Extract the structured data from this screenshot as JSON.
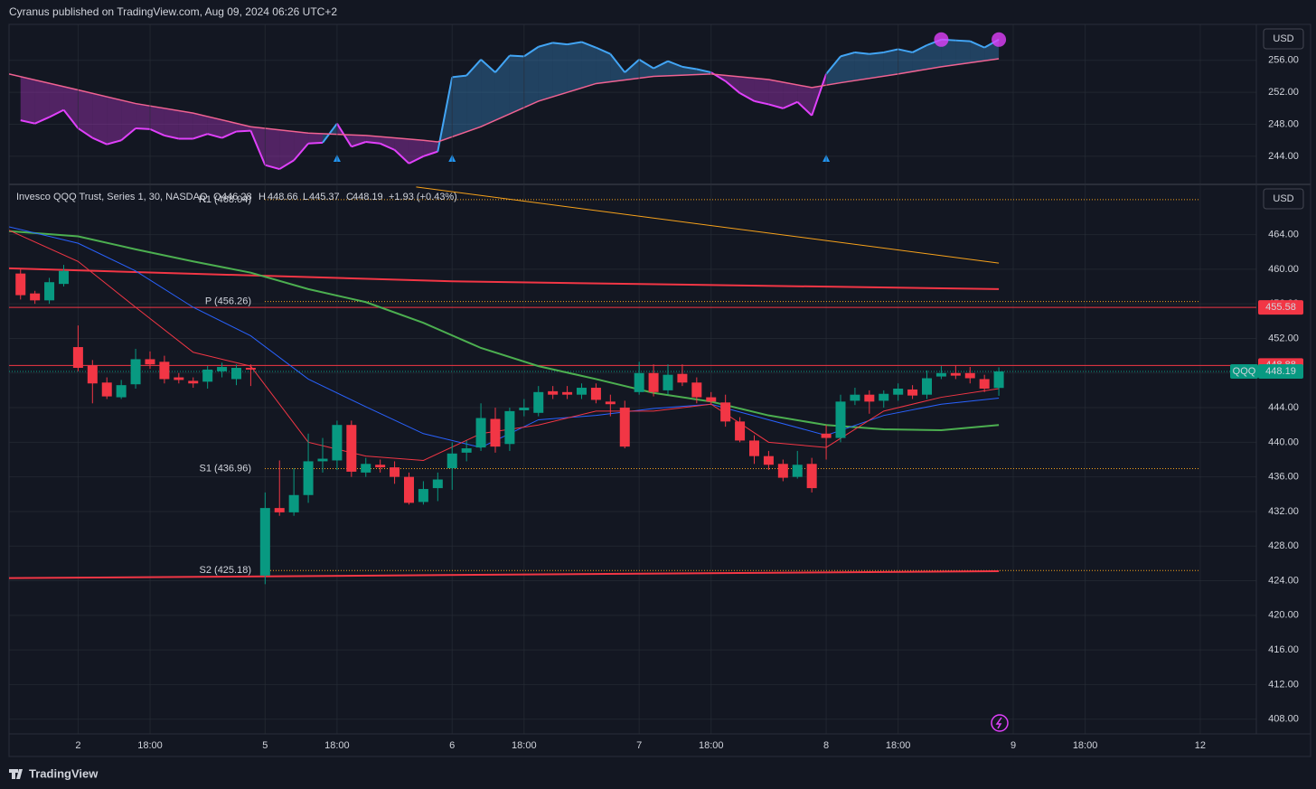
{
  "header": "Cyranus published on TradingView.com, Aug 09, 2024 06:26 UTC+2",
  "footer": "TradingView",
  "chart_data": [
    {
      "type": "line",
      "currency": "USD",
      "xlim": [
        -17.8,
        68.9
      ],
      "ylim": [
        240.6,
        260.5
      ],
      "yticks": [
        {
          "value": 244,
          "label": "244.00"
        },
        {
          "value": 248,
          "label": "248.00"
        },
        {
          "value": 252,
          "label": "252.00"
        },
        {
          "value": 256,
          "label": "256.00"
        }
      ],
      "series": [
        {
          "color": "#42a5f5",
          "color_below": "#e040fb",
          "x": [
            -17,
            -16,
            -15,
            -14,
            -13,
            -12,
            -11,
            -10,
            -9,
            -8,
            -7,
            -6,
            -5,
            -4,
            -3,
            -2,
            -1,
            0,
            1,
            2,
            3,
            4,
            5,
            6,
            7,
            8,
            9,
            10,
            11,
            12,
            13,
            14,
            15,
            16,
            17,
            18,
            19,
            20,
            21,
            22,
            23,
            24,
            25,
            26,
            27,
            28,
            29,
            30,
            31,
            32,
            33,
            34,
            35,
            36,
            37,
            38,
            39,
            40,
            41,
            42,
            43,
            44,
            45,
            46,
            47,
            48,
            49,
            50,
            51
          ],
          "values": [
            248.5,
            248.1,
            248.9,
            249.8,
            247.5,
            246.3,
            245.5,
            246,
            247.5,
            247.4,
            246.6,
            246.2,
            246.2,
            246.8,
            246.3,
            247.1,
            247.2,
            242.9,
            242.4,
            243.5,
            245.6,
            245.7,
            248.1,
            245.2,
            245.8,
            245.6,
            244.8,
            243.1,
            244,
            244.6,
            253.9,
            254.1,
            256.1,
            254.5,
            256.6,
            256.5,
            257.7,
            258.2,
            258,
            258.3,
            257.6,
            256.8,
            254.5,
            256.1,
            255,
            255.9,
            255.2,
            254.9,
            254.5,
            253.4,
            251.9,
            250.9,
            250.5,
            250,
            250.8,
            249.1,
            254.3,
            256.5,
            257,
            256.8,
            257,
            257.4,
            257,
            257.9,
            258.6,
            258.5,
            258.4,
            257.6,
            258.6
          ]
        },
        {
          "color": "#f06292",
          "x": [
            -17.8,
            -13,
            -9,
            -5,
            -1,
            3,
            7,
            11,
            12,
            15,
            19,
            23,
            27,
            31,
            35,
            38,
            40,
            44,
            47,
            51
          ],
          "values": [
            254.3,
            252.3,
            250.6,
            249.4,
            247.7,
            246.9,
            246.6,
            246,
            245.8,
            247.7,
            250.9,
            253.1,
            254,
            254.3,
            253.6,
            252.6,
            253.2,
            254.3,
            255.2,
            256.2
          ]
        }
      ],
      "signals_up": {
        "color": "#2196f3",
        "x": [
          5,
          13,
          39
        ]
      },
      "signals_circle": {
        "color": "#e040fb",
        "x": [
          47,
          51
        ]
      }
    },
    {
      "type": "candlestick",
      "currency": "USD",
      "legend": {
        "title": "Invesco QQQ Trust, Series 1, 30, NASDAQ",
        "o_label": "O",
        "open": 446.28,
        "h_label": "H",
        "high": 448.66,
        "l_label": "L",
        "low": 445.37,
        "c_label": "C",
        "close": 448.19,
        "change": "+1.93 (+0.43%)"
      },
      "xlim": [
        -17.8,
        68.9
      ],
      "ylim": [
        406.3,
        469.7
      ],
      "xticks": [
        {
          "value": -13,
          "label": "2"
        },
        {
          "value": -8,
          "label": "18:00"
        },
        {
          "value": 0,
          "label": "5"
        },
        {
          "value": 5,
          "label": "18:00"
        },
        {
          "value": 13,
          "label": "6"
        },
        {
          "value": 18,
          "label": "18:00"
        },
        {
          "value": 26,
          "label": "7"
        },
        {
          "value": 31,
          "label": "18:00"
        },
        {
          "value": 39,
          "label": "8"
        },
        {
          "value": 44,
          "label": "18:00"
        },
        {
          "value": 52,
          "label": "9"
        },
        {
          "value": 57,
          "label": "18:00"
        },
        {
          "value": 65,
          "label": "12"
        }
      ],
      "yticks": [
        {
          "value": 408,
          "label": "408.00"
        },
        {
          "value": 412,
          "label": "412.00"
        },
        {
          "value": 416,
          "label": "416.00"
        },
        {
          "value": 420,
          "label": "420.00"
        },
        {
          "value": 424,
          "label": "424.00"
        },
        {
          "value": 428,
          "label": "428.00"
        },
        {
          "value": 432,
          "label": "432.00"
        },
        {
          "value": 436,
          "label": "436.00"
        },
        {
          "value": 440,
          "label": "440.00"
        },
        {
          "value": 444,
          "label": "444.00"
        },
        {
          "value": 448,
          "label": "448.00"
        },
        {
          "value": 452,
          "label": "452.00"
        },
        {
          "value": 456,
          "label": "456.00"
        },
        {
          "value": 460,
          "label": "460.00"
        },
        {
          "value": 464,
          "label": "464.00"
        }
      ],
      "up_color": "#089981",
      "down_color": "#f23645",
      "candles": {
        "x": [
          -17,
          -16,
          -15,
          -14,
          -13,
          -12,
          -11,
          -10,
          -9,
          -8,
          -7,
          -6,
          -5,
          -4,
          -3,
          -2,
          -1,
          0,
          1,
          2,
          3,
          4,
          5,
          6,
          7,
          8,
          9,
          10,
          11,
          12,
          13,
          14,
          15,
          16,
          17,
          18,
          19,
          20,
          21,
          22,
          23,
          24,
          25,
          26,
          27,
          28,
          29,
          30,
          31,
          32,
          33,
          34,
          35,
          36,
          37,
          38,
          39,
          40,
          41,
          42,
          43,
          44,
          45,
          46,
          47,
          48,
          49,
          50,
          51
        ],
        "open": [
          459.5,
          457.2,
          456.4,
          458.3,
          451,
          448.9,
          446.9,
          445.2,
          446.7,
          449.6,
          449.3,
          447.5,
          447.1,
          447,
          448.2,
          447.3,
          448.6,
          424.6,
          432.4,
          431.9,
          433.9,
          437.8,
          437.9,
          442,
          436.5,
          437.4,
          437.1,
          436,
          433.1,
          434.7,
          437,
          438.8,
          439.4,
          442.7,
          439.8,
          443.7,
          443.4,
          445.9,
          445.8,
          445.5,
          446.3,
          444.7,
          444,
          445.8,
          448,
          446,
          447.9,
          446.9,
          445.2,
          444.6,
          442.4,
          440.2,
          438.4,
          437.5,
          436,
          437.5,
          441,
          440.5,
          444.8,
          445.5,
          444.8,
          445.5,
          446.1,
          445.5,
          447.6,
          448,
          448,
          447.3,
          446.28
        ],
        "high": [
          460,
          457.5,
          459,
          460.5,
          453.5,
          449.5,
          447.5,
          447.2,
          450.8,
          450.5,
          450,
          448,
          447.5,
          448.8,
          449.2,
          449,
          449,
          434.2,
          437.9,
          437,
          441,
          440.5,
          442.5,
          442.5,
          438.2,
          438,
          437.8,
          436.5,
          435.5,
          436.5,
          440,
          440.2,
          444.5,
          444,
          444,
          445,
          446.5,
          446.5,
          446.5,
          446.8,
          446.8,
          445.5,
          444.8,
          449.3,
          449,
          449,
          449,
          447.5,
          445.8,
          445.5,
          442.9,
          440.8,
          439,
          438,
          439,
          438.2,
          442,
          445.5,
          446.3,
          446,
          446,
          446.8,
          446.6,
          448.3,
          448.8,
          448.9,
          448.7,
          447.8,
          448.66
        ],
        "low": [
          456.5,
          456,
          456,
          458,
          448.2,
          444.5,
          445,
          445,
          446.2,
          448.5,
          446.8,
          446.8,
          446.3,
          446.2,
          447.5,
          446.6,
          446.5,
          423.6,
          431.5,
          431.5,
          433,
          436.5,
          436.8,
          436,
          436,
          436.5,
          435.2,
          432.8,
          432.8,
          433.2,
          434.5,
          437.8,
          439,
          438.8,
          439,
          443,
          443,
          445,
          445,
          445,
          444.5,
          443,
          439.3,
          445.5,
          445.3,
          445.5,
          446.5,
          444.5,
          444.3,
          441.8,
          440,
          437.5,
          436.8,
          435.5,
          435.8,
          434.2,
          438,
          440,
          444.3,
          443.3,
          444,
          444.8,
          445,
          445,
          447.3,
          447.3,
          446.8,
          445.8,
          445.37
        ],
        "close": [
          457,
          456.4,
          458.5,
          459.8,
          448.6,
          446.8,
          445.3,
          446.6,
          449.6,
          449,
          447.3,
          447.2,
          446.8,
          448.4,
          448.7,
          448.6,
          448.4,
          432.4,
          431.9,
          433.9,
          437.8,
          438.1,
          442,
          436.6,
          437.5,
          437.1,
          436,
          433,
          434.6,
          435.7,
          438.7,
          439.3,
          442.8,
          439.5,
          443.6,
          444,
          445.8,
          445.5,
          445.5,
          446.3,
          444.9,
          444.4,
          439.5,
          448,
          445.8,
          447.8,
          446.9,
          445.2,
          444.7,
          442.4,
          440.2,
          438.4,
          437.4,
          435.9,
          437.4,
          434.7,
          440.5,
          444.7,
          445.5,
          444.7,
          445.6,
          446.2,
          445.4,
          447.4,
          448,
          447.7,
          447.4,
          446.2,
          448.19
        ]
      },
      "lines": [
        {
          "color": "#f7a21b",
          "width": 1,
          "x": [
            10.5,
            51
          ],
          "values": [
            469.5,
            460.7
          ]
        },
        {
          "color": "#f23645",
          "width": 2,
          "x": [
            -17.8,
            13,
            51
          ],
          "values": [
            460.1,
            458.6,
            457.7
          ]
        },
        {
          "color": "#f23645",
          "width": 2,
          "x": [
            -17.8,
            51
          ],
          "values": [
            424.3,
            425.1
          ]
        },
        {
          "color": "#4caf50",
          "width": 2,
          "x": [
            -17.8,
            -13,
            -9,
            -5,
            -1,
            3,
            7,
            11,
            15,
            19,
            23,
            27,
            31,
            35,
            39,
            43,
            47,
            51
          ],
          "values": [
            464.4,
            463.8,
            462.3,
            460.9,
            459.6,
            457.7,
            456.2,
            453.8,
            450.9,
            448.8,
            447.3,
            445.7,
            444.7,
            443.1,
            442,
            441.5,
            441.4,
            442
          ]
        },
        {
          "color": "#2962ff",
          "width": 1,
          "x": [
            -17.8,
            -13,
            -9,
            -5,
            -1,
            3,
            7,
            11,
            15,
            19,
            23,
            27,
            31,
            35,
            39,
            43,
            47,
            51
          ],
          "values": [
            464.9,
            463,
            459.8,
            455.6,
            452.3,
            447.3,
            444.1,
            441,
            439.4,
            442.6,
            443.1,
            443.9,
            444.4,
            442.6,
            440.8,
            443.1,
            444.4,
            445.1
          ]
        },
        {
          "color": "#f23645",
          "width": 1,
          "x": [
            -17.8,
            -13,
            -9,
            -5,
            -1,
            3,
            7,
            11,
            15,
            19,
            23,
            27,
            31,
            35,
            39,
            43,
            47,
            51
          ],
          "values": [
            464.5,
            460.9,
            455.6,
            450.4,
            448.8,
            440,
            438.4,
            437.9,
            441,
            442,
            443.6,
            443.6,
            444.4,
            440,
            439.4,
            443.6,
            445.2,
            446.2
          ]
        }
      ],
      "hlines": [
        {
          "value": 455.58,
          "color": "#f23645"
        },
        {
          "value": 448.88,
          "color": "#f23645"
        }
      ],
      "last_price": {
        "symbol": "QQQ",
        "value": 448.19,
        "color": "#089981"
      },
      "pivot_color": "#f7a21b",
      "pivots": [
        {
          "label": "R1 (468.04)",
          "value": 468.04
        },
        {
          "label": "P (456.26)",
          "value": 456.26
        },
        {
          "label": "S1 (436.96)",
          "value": 436.96
        },
        {
          "label": "S2 (425.18)",
          "value": 425.18
        }
      ]
    }
  ]
}
